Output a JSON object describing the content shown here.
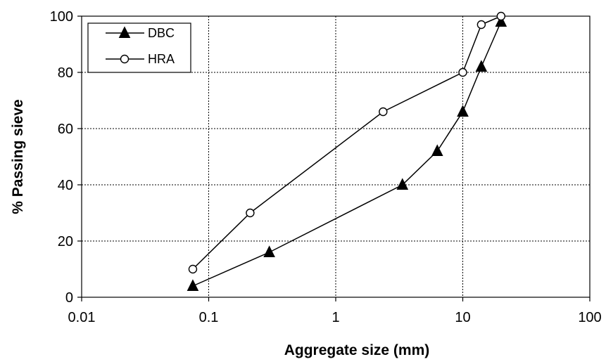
{
  "chart_data": {
    "type": "line",
    "xlabel": "Aggregate size (mm)",
    "ylabel": "% Passing sieve",
    "xscale": "log",
    "xlim": [
      0.01,
      100
    ],
    "ylim": [
      0,
      100
    ],
    "xticks": [
      0.01,
      0.1,
      1,
      10,
      100
    ],
    "xtick_labels": [
      "0.01",
      "0.1",
      "1",
      "10",
      "100"
    ],
    "yticks": [
      0,
      20,
      40,
      60,
      80,
      100
    ],
    "ytick_labels": [
      "0",
      "20",
      "40",
      "60",
      "80",
      "100"
    ],
    "grid": true,
    "legend_position": "top-left",
    "series": [
      {
        "name": "DBC",
        "marker": "triangle",
        "color": "#000000",
        "x": [
          0.075,
          0.3,
          3.35,
          6.3,
          10,
          14,
          20
        ],
        "y": [
          4,
          16,
          40,
          52,
          66,
          82,
          98
        ]
      },
      {
        "name": "HRA",
        "marker": "circle-open",
        "color": "#000000",
        "x": [
          0.075,
          0.212,
          2.36,
          10,
          14,
          20
        ],
        "y": [
          10,
          30,
          66,
          80,
          97,
          100
        ]
      }
    ]
  }
}
